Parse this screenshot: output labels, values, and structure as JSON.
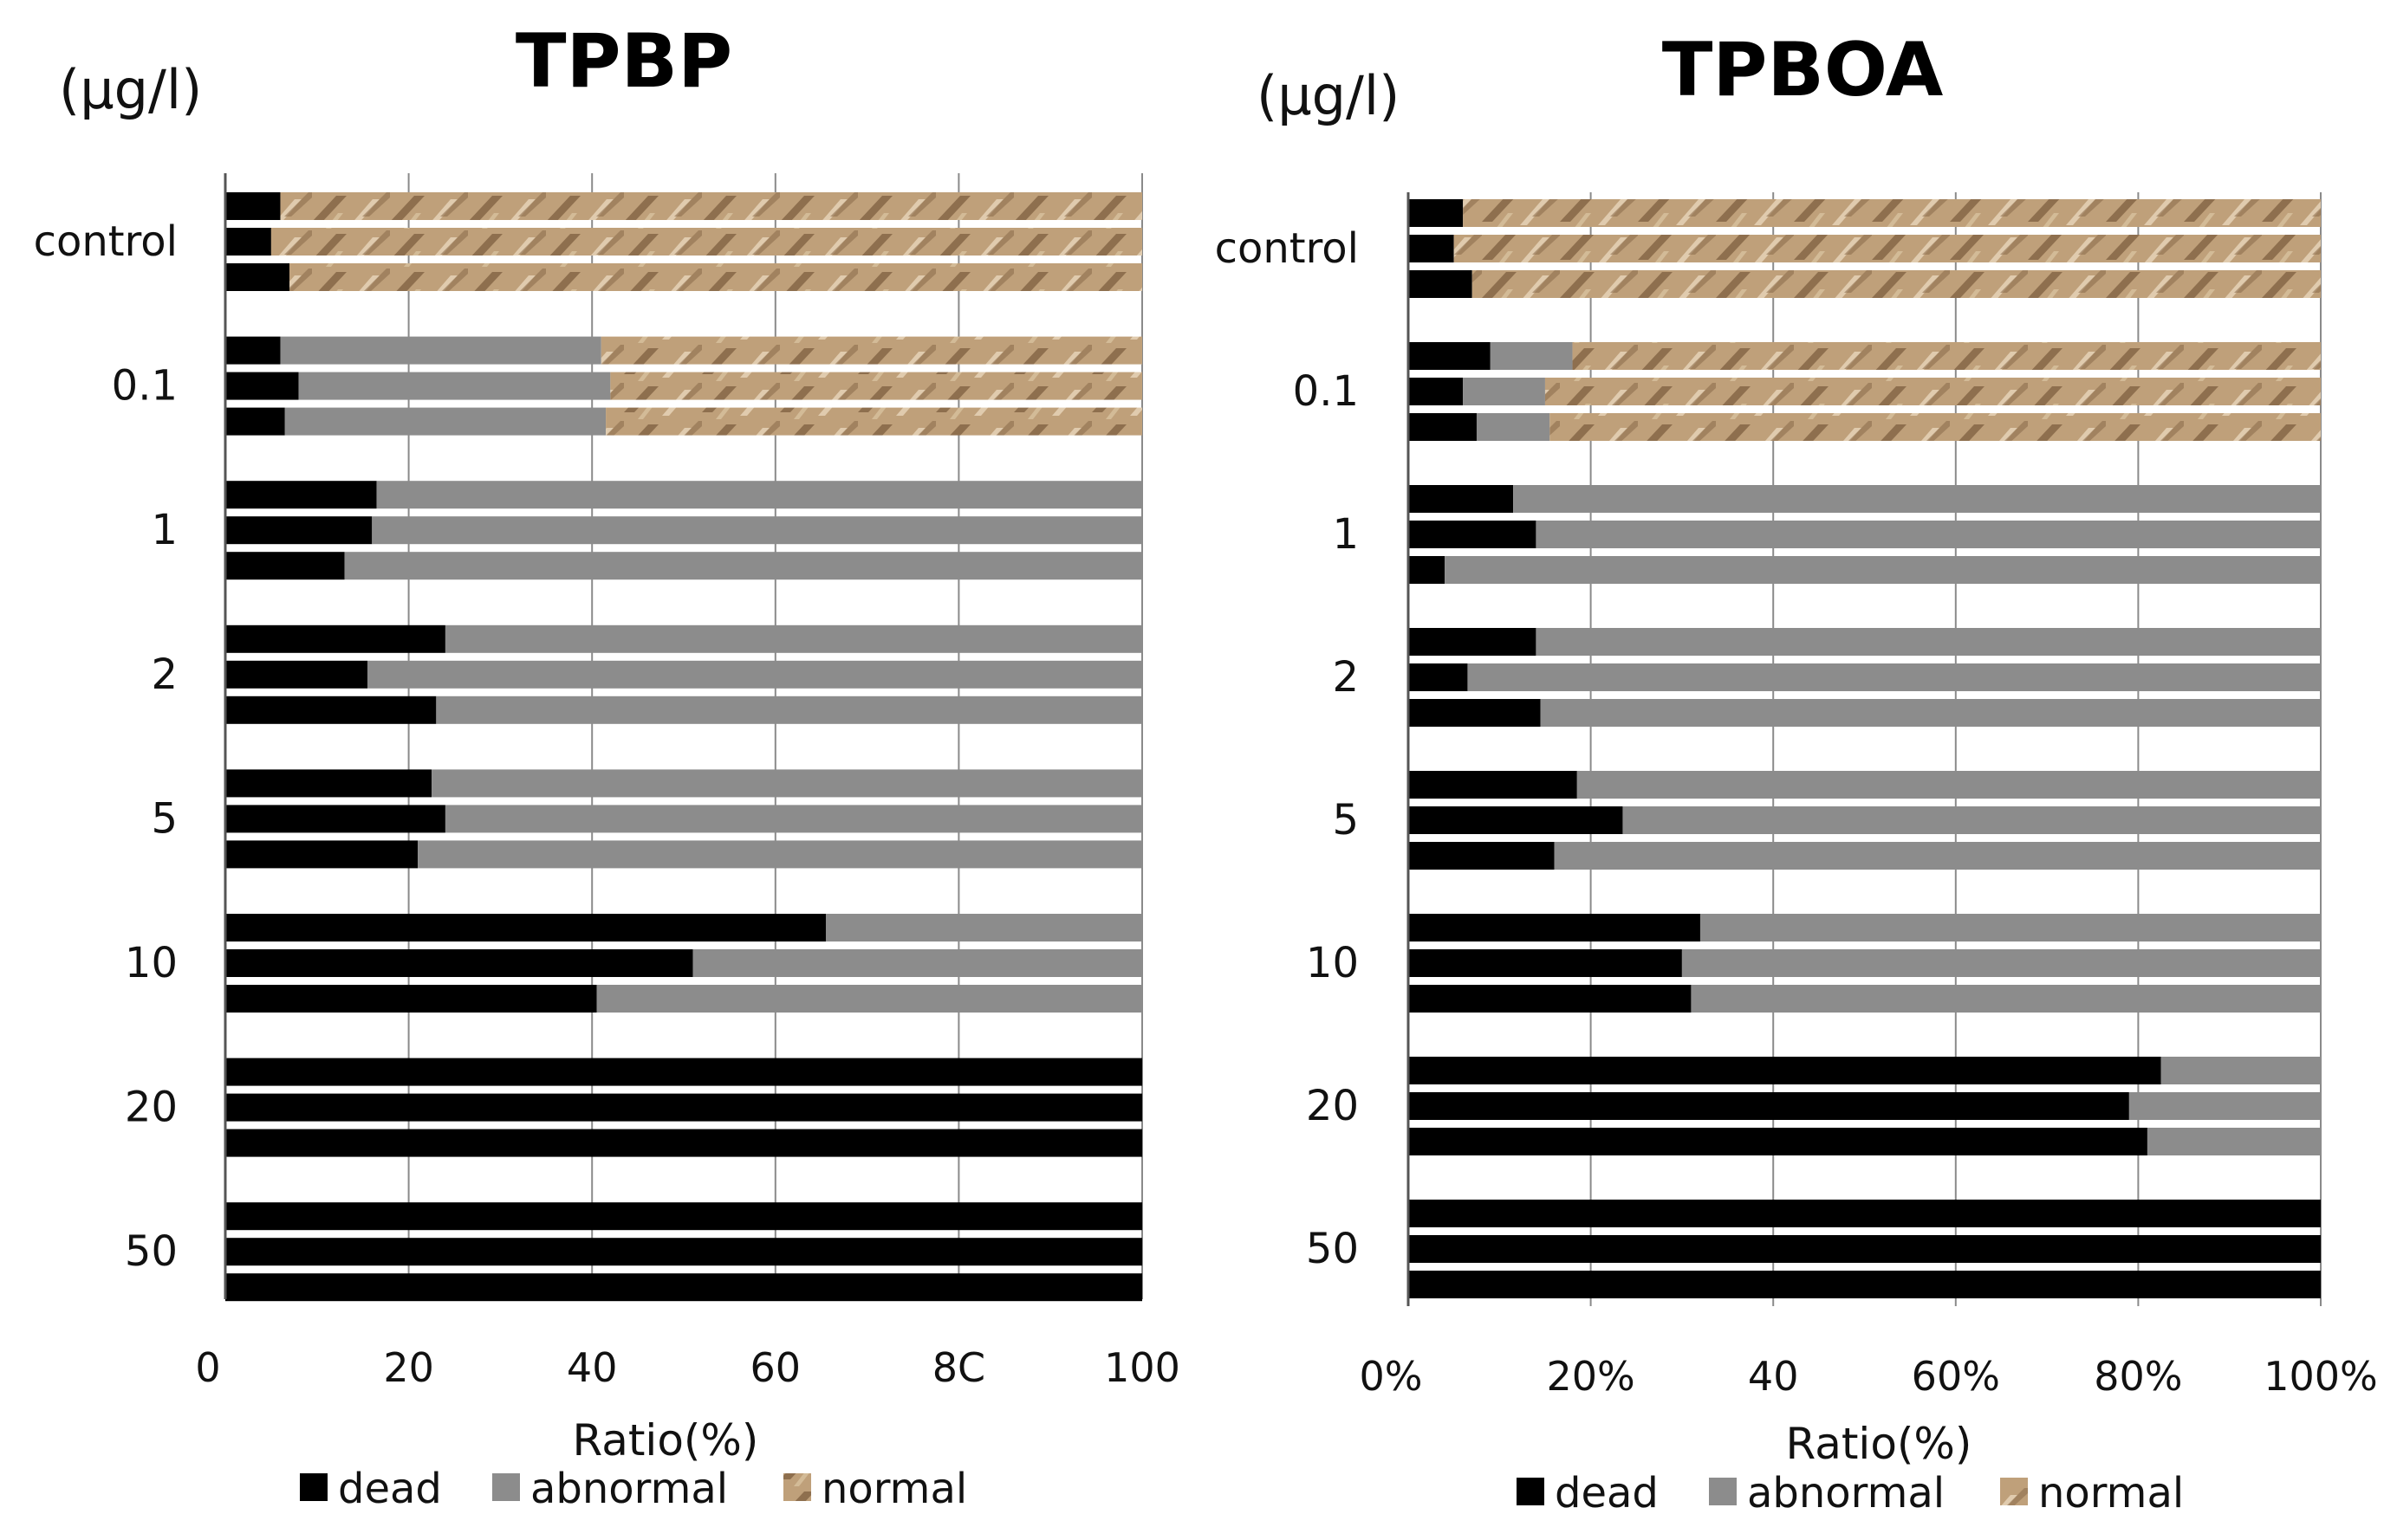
{
  "chart_data": [
    {
      "type": "bar",
      "orientation": "horizontal",
      "stacked": true,
      "title": "TPBP",
      "unit_label": "(µg/l)",
      "xlabel": "Ratio(%)",
      "xlim": [
        0,
        100
      ],
      "x_ticks": [
        "0",
        "20",
        "40",
        "60",
        "8C",
        "100"
      ],
      "categories": [
        "control",
        "0.1",
        "1",
        "2",
        "5",
        "10",
        "20",
        "50"
      ],
      "replicates": 3,
      "series": [
        {
          "name": "dead",
          "color": "#000000",
          "values": [
            [
              6,
              5,
              7
            ],
            [
              6,
              8,
              6.5
            ],
            [
              16.5,
              16,
              13
            ],
            [
              24,
              15.5,
              23
            ],
            [
              22.5,
              24,
              21
            ],
            [
              65.5,
              51,
              40.5
            ],
            [
              100,
              100,
              100
            ],
            [
              100,
              100,
              100
            ]
          ]
        },
        {
          "name": "abnormal",
          "color": "#8c8c8c",
          "values": [
            [
              0,
              0,
              0
            ],
            [
              35,
              34,
              35
            ],
            [
              83.5,
              84,
              87
            ],
            [
              76,
              84.5,
              77
            ],
            [
              77.5,
              76,
              79
            ],
            [
              34.5,
              49,
              59.5
            ],
            [
              0,
              0,
              0
            ],
            [
              0,
              0,
              0
            ]
          ]
        },
        {
          "name": "normal",
          "color": "#b99a74",
          "values": [
            [
              94,
              95,
              93
            ],
            [
              59,
              58,
              58.5
            ],
            [
              0,
              0,
              0
            ],
            [
              0,
              0,
              0
            ],
            [
              0,
              0,
              0
            ],
            [
              0,
              0,
              0
            ],
            [
              0,
              0,
              0
            ],
            [
              0,
              0,
              0
            ]
          ]
        }
      ],
      "legend": [
        "dead",
        "abnormal",
        "normal"
      ],
      "legend_position": "bottom"
    },
    {
      "type": "bar",
      "orientation": "horizontal",
      "stacked": true,
      "title": "TPBOA",
      "unit_label": "(µg/l)",
      "xlabel": "Ratio(%)",
      "xlim": [
        0,
        100
      ],
      "x_ticks": [
        "0%",
        "20%",
        "40",
        "60%",
        "80%",
        "100%"
      ],
      "categories": [
        "control",
        "0.1",
        "1",
        "2",
        "5",
        "10",
        "20",
        "50"
      ],
      "replicates": 3,
      "series": [
        {
          "name": "dead",
          "color": "#000000",
          "values": [
            [
              6,
              5,
              7
            ],
            [
              9,
              6,
              7.5
            ],
            [
              11.5,
              14,
              4
            ],
            [
              14,
              6.5,
              14.5
            ],
            [
              18.5,
              23.5,
              16
            ],
            [
              32,
              30,
              31
            ],
            [
              82.5,
              79,
              81
            ],
            [
              100,
              100,
              100
            ]
          ]
        },
        {
          "name": "abnormal",
          "color": "#8c8c8c",
          "values": [
            [
              0,
              0,
              0
            ],
            [
              9,
              9,
              8
            ],
            [
              88.5,
              86,
              96
            ],
            [
              86,
              93.5,
              85.5
            ],
            [
              81.5,
              76.5,
              84
            ],
            [
              68,
              70,
              69
            ],
            [
              17.5,
              21,
              19
            ],
            [
              0,
              0,
              0
            ]
          ]
        },
        {
          "name": "normal",
          "color": "#b99a74",
          "values": [
            [
              94,
              95,
              93
            ],
            [
              82,
              85,
              84.5
            ],
            [
              0,
              0,
              0
            ],
            [
              0,
              0,
              0
            ],
            [
              0,
              0,
              0
            ],
            [
              0,
              0,
              0
            ],
            [
              0,
              0,
              0
            ],
            [
              0,
              0,
              0
            ]
          ]
        }
      ],
      "legend": [
        "dead",
        "abnormal",
        "normal"
      ],
      "legend_position": "bottom"
    }
  ]
}
